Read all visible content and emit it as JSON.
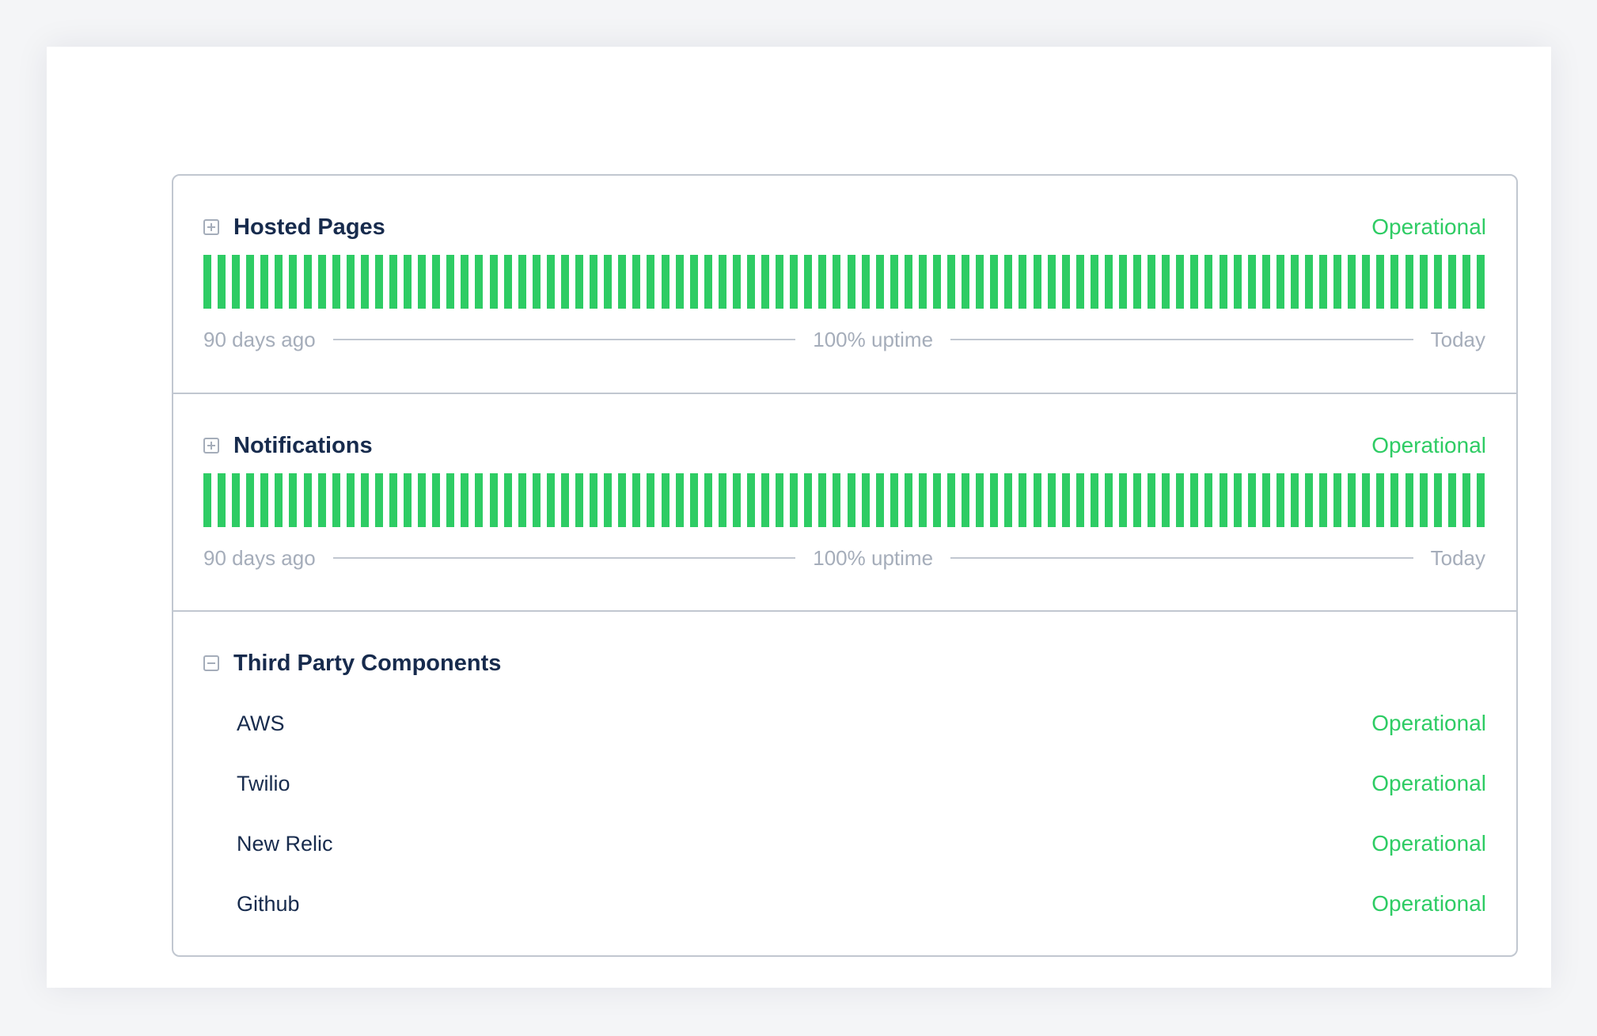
{
  "colors": {
    "operational": "#2ecc64",
    "text": "#172b4d",
    "muted": "#a5adba",
    "border": "#c1c7d0"
  },
  "sections": [
    {
      "title": "Hosted Pages",
      "status": "Operational",
      "toggle": "plus-square-icon",
      "uptime": {
        "days": 90,
        "fraction_up": 1.0,
        "start_label": "90 days ago",
        "summary": "100% uptime",
        "end_label": "Today"
      }
    },
    {
      "title": "Notifications",
      "status": "Operational",
      "toggle": "plus-square-icon",
      "uptime": {
        "days": 90,
        "fraction_up": 1.0,
        "start_label": "90 days ago",
        "summary": "100% uptime",
        "end_label": "Today"
      }
    }
  ],
  "third_party": {
    "title": "Third Party Components",
    "toggle": "minus-square-icon",
    "items": [
      {
        "name": "AWS",
        "status": "Operational"
      },
      {
        "name": "Twilio",
        "status": "Operational"
      },
      {
        "name": "New Relic",
        "status": "Operational"
      },
      {
        "name": "Github",
        "status": "Operational"
      }
    ]
  }
}
